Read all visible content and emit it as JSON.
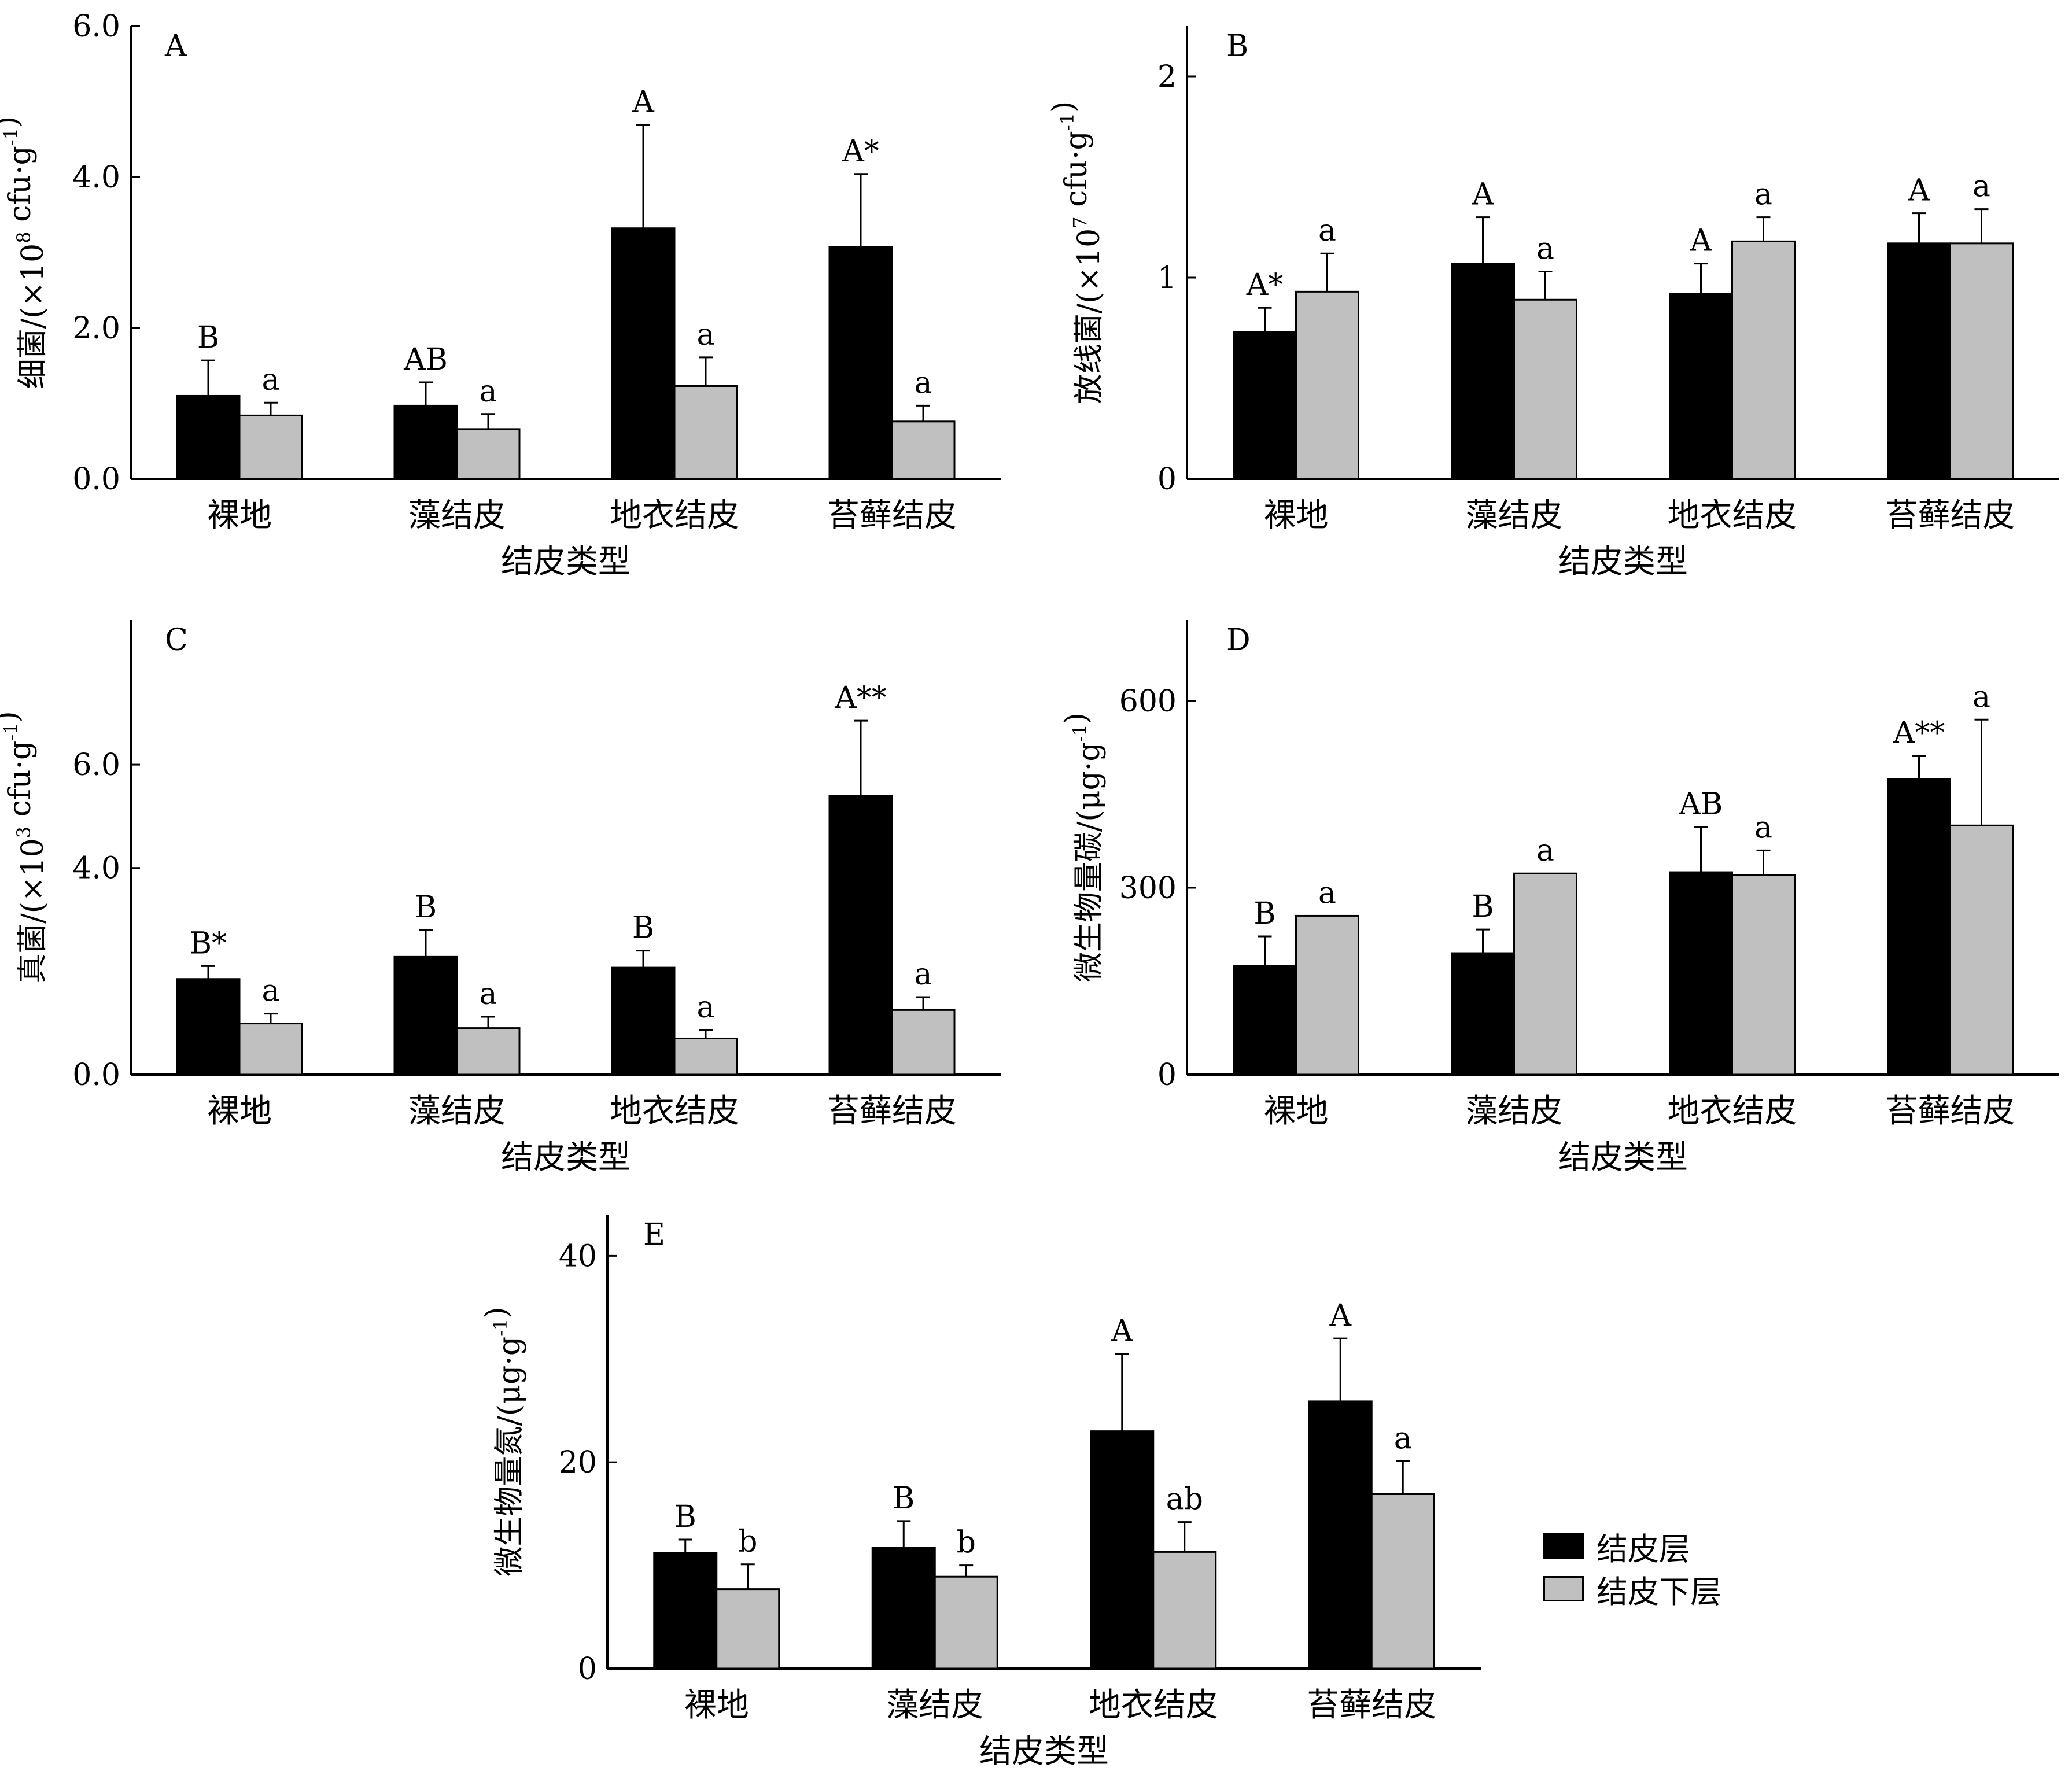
{
  "colors": {
    "crust": "#000000",
    "subcrust": "#c0c0c0",
    "axis": "#000000"
  },
  "legend": {
    "crust_label": "结皮层",
    "subcrust_label": "结皮下层"
  },
  "chart_data": [
    {
      "type": "bar",
      "panel": "A",
      "categories": [
        "裸地",
        "藻结皮",
        "地衣结皮",
        "苔藓结皮"
      ],
      "xlabel": "结皮类型",
      "ylabel": "细菌/(×10⁸ cfu·g⁻¹)",
      "ylim": [
        0,
        6
      ],
      "yticks": [
        "0.0",
        "2.0",
        "4.0",
        "6.0"
      ],
      "series": [
        {
          "name": "结皮层",
          "values": [
            1.1,
            0.97,
            3.32,
            3.07
          ],
          "errors": [
            0.47,
            0.31,
            1.37,
            0.97
          ],
          "labels": [
            "B",
            "AB",
            "A",
            "A*"
          ]
        },
        {
          "name": "结皮下层",
          "values": [
            0.84,
            0.66,
            1.23,
            0.76
          ],
          "errors": [
            0.17,
            0.2,
            0.38,
            0.21
          ],
          "labels": [
            "a",
            "a",
            "a",
            "a"
          ]
        }
      ]
    },
    {
      "type": "bar",
      "panel": "B",
      "categories": [
        "裸地",
        "藻结皮",
        "地衣结皮",
        "苔藓结皮"
      ],
      "xlabel": "结皮类型",
      "ylabel": "放线菌/(×10⁷ cfu·g⁻¹)",
      "ylim": [
        0,
        2.25
      ],
      "yticks": [
        "0",
        "1",
        "2"
      ],
      "series": [
        {
          "name": "结皮层",
          "values": [
            0.73,
            1.07,
            0.92,
            1.17
          ],
          "errors": [
            0.12,
            0.23,
            0.15,
            0.15
          ],
          "labels": [
            "A*",
            "A",
            "A",
            "A"
          ]
        },
        {
          "name": "结皮下层",
          "values": [
            0.93,
            0.89,
            1.18,
            1.17
          ],
          "errors": [
            0.19,
            0.14,
            0.12,
            0.17
          ],
          "labels": [
            "a",
            "a",
            "a",
            "a"
          ]
        }
      ]
    },
    {
      "type": "bar",
      "panel": "C",
      "categories": [
        "裸地",
        "藻结皮",
        "地衣结皮",
        "苔藓结皮"
      ],
      "xlabel": "结皮类型",
      "ylabel": "真菌/(×10³ cfu·g⁻¹)",
      "ylim": [
        0,
        8.8
      ],
      "yticks": [
        "0.0",
        "4.0",
        "6.0"
      ],
      "series": [
        {
          "name": "结皮层",
          "values": [
            1.85,
            2.28,
            2.07,
            5.4
          ],
          "errors": [
            0.25,
            0.52,
            0.33,
            1.45
          ],
          "labels": [
            "B*",
            "B",
            "B",
            "A**"
          ]
        },
        {
          "name": "结皮下层",
          "values": [
            0.99,
            0.9,
            0.7,
            1.25
          ],
          "errors": [
            0.19,
            0.22,
            0.16,
            0.25
          ],
          "labels": [
            "a",
            "a",
            "a",
            "a"
          ]
        }
      ]
    },
    {
      "type": "bar",
      "panel": "D",
      "categories": [
        "裸地",
        "藻结皮",
        "地衣结皮",
        "苔藓结皮"
      ],
      "xlabel": "结皮类型",
      "ylabel": "微生物量碳/(μg·g⁻¹)",
      "ylim": [
        0,
        730
      ],
      "yticks": [
        "0",
        "300",
        "600"
      ],
      "series": [
        {
          "name": "结皮层",
          "values": [
            175,
            195,
            325,
            475
          ],
          "errors": [
            47,
            38,
            73,
            37
          ],
          "labels": [
            "B",
            "B",
            "AB",
            "A**"
          ]
        },
        {
          "name": "结皮下层",
          "values": [
            255,
            323,
            320,
            400
          ],
          "errors": [
            0,
            0,
            40,
            170
          ],
          "labels": [
            "a",
            "a",
            "a",
            "a"
          ]
        }
      ]
    },
    {
      "type": "bar",
      "panel": "E",
      "categories": [
        "裸地",
        "藻结皮",
        "地衣结皮",
        "苔藓结皮"
      ],
      "xlabel": "结皮类型",
      "ylabel": "微生物量氮/(μg·g⁻¹)",
      "ylim": [
        0,
        44
      ],
      "yticks": [
        "0",
        "20",
        "40"
      ],
      "series": [
        {
          "name": "结皮层",
          "values": [
            11.2,
            11.7,
            23,
            25.9
          ],
          "errors": [
            1.3,
            2.6,
            7.5,
            6.1
          ],
          "labels": [
            "B",
            "B",
            "A",
            "A"
          ]
        },
        {
          "name": "结皮下层",
          "values": [
            7.7,
            8.9,
            11.3,
            16.9
          ],
          "errors": [
            2.4,
            1.1,
            2.9,
            3.2
          ],
          "labels": [
            "b",
            "b",
            "ab",
            "a"
          ]
        }
      ]
    }
  ]
}
